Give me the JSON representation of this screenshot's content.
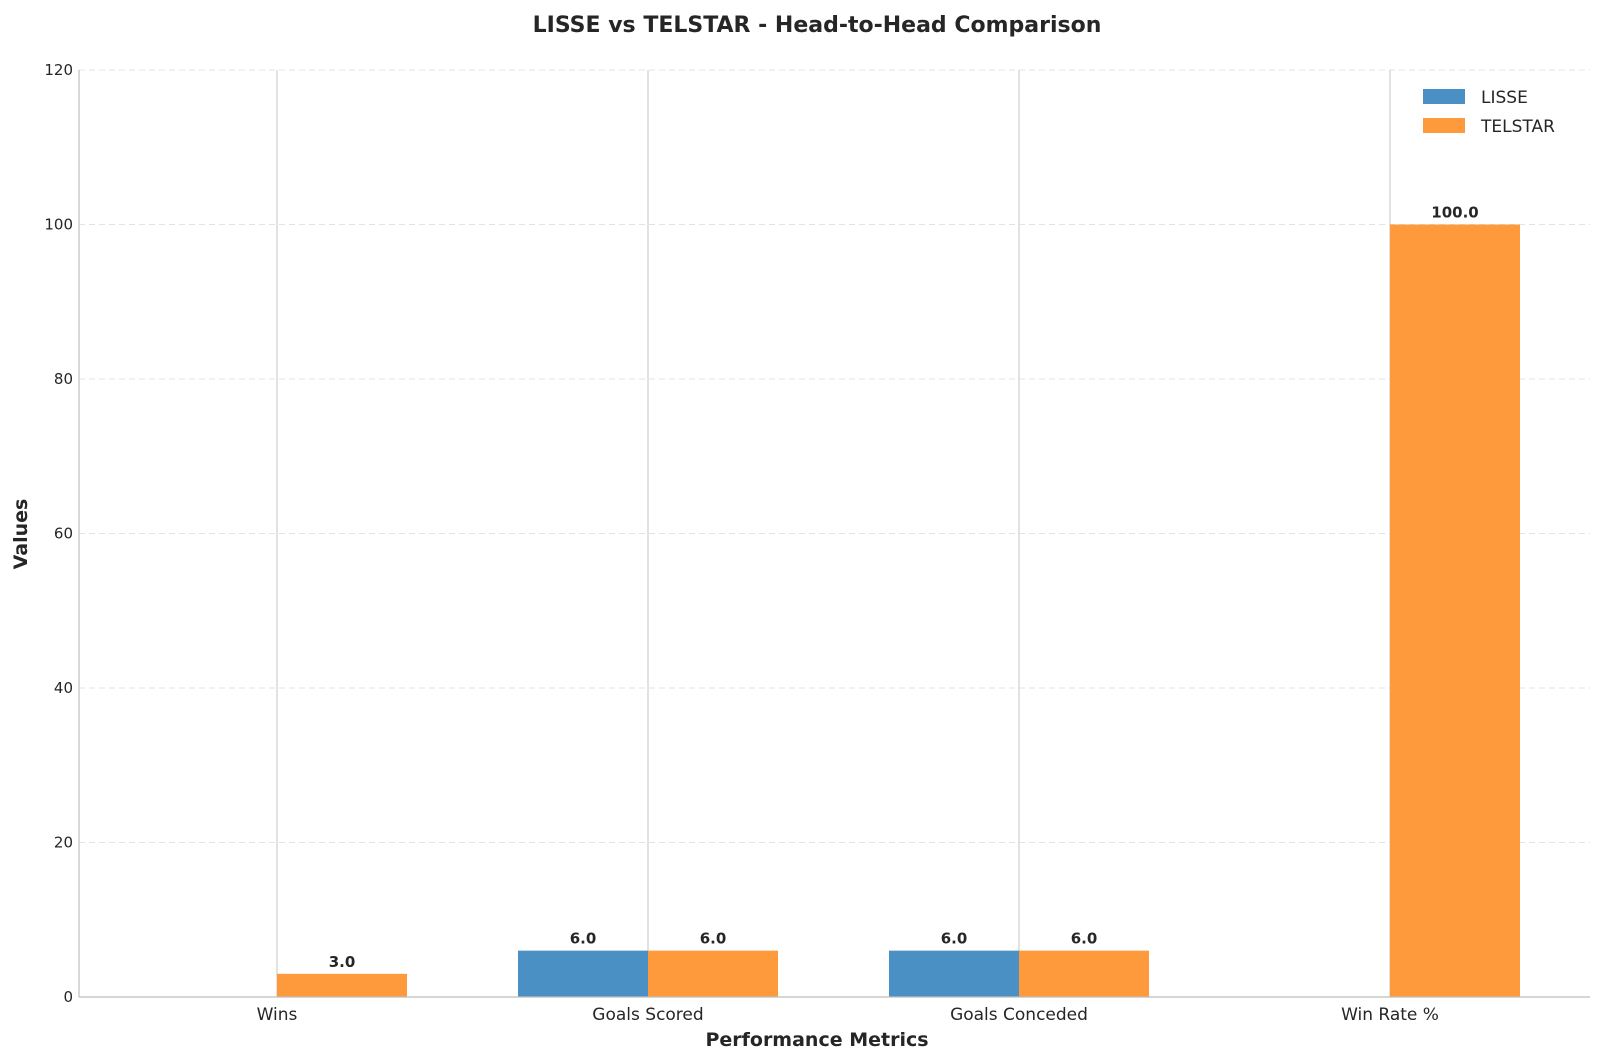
{
  "chart_data": {
    "type": "bar",
    "title": "LISSE vs TELSTAR - Head-to-Head Comparison",
    "xlabel": "Performance Metrics",
    "ylabel": "Values",
    "categories": [
      "Wins",
      "Goals Scored",
      "Goals Conceded",
      "Win Rate %"
    ],
    "series": [
      {
        "name": "LISSE",
        "values": [
          0,
          6.0,
          6.0,
          0
        ],
        "color": "#4a90c4"
      },
      {
        "name": "TELSTAR",
        "values": [
          3.0,
          6.0,
          6.0,
          100.0
        ],
        "color": "#ff9a3c"
      }
    ],
    "data_labels": [
      [
        "",
        "6.0",
        "6.0",
        ""
      ],
      [
        "3.0",
        "6.0",
        "6.0",
        "100.0"
      ]
    ],
    "ylim": [
      0,
      120
    ],
    "yticks": [
      0,
      20,
      40,
      60,
      80,
      100,
      120
    ],
    "ytick_labels": [
      "0",
      "20",
      "40",
      "60",
      "80",
      "100",
      "120"
    ],
    "grid": true,
    "legend_position": "top-right"
  }
}
